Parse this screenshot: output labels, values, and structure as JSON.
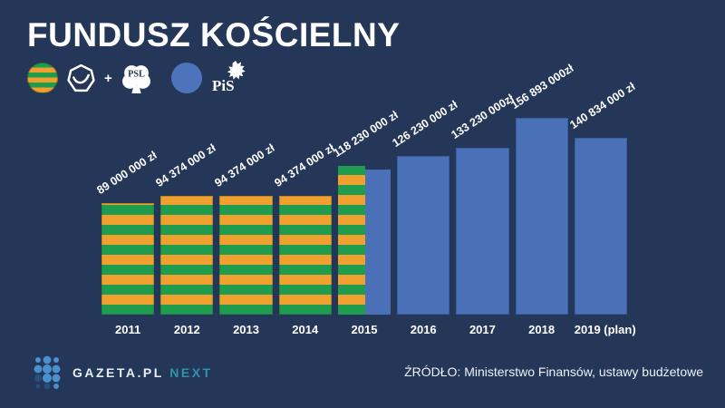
{
  "header": {
    "title": "FUNDUSZ KOŚCIELNY"
  },
  "legend": {
    "plus": "+",
    "psl_text": "PSL",
    "pis_text": "PiS"
  },
  "chart_data": {
    "type": "bar",
    "title": "FUNDUSZ KOŚCIELNY",
    "currency": "zł",
    "categories": [
      "2011",
      "2012",
      "2013",
      "2014",
      "2015",
      "2016",
      "2017",
      "2018",
      "2019 (plan)"
    ],
    "values": [
      89000000,
      94374000,
      94374000,
      94374000,
      118230000,
      126230000,
      133230000,
      156893000,
      140834000
    ],
    "value_labels": [
      "89 000 000 zł",
      "94 374 000 zł",
      "94 374 000 zł",
      "94 374 000 zł",
      "118 230 000 zł",
      "126 230 000 zł",
      "133 230 000zł",
      "156 893 000zł",
      "140 834 000 zł"
    ],
    "bar_styles": [
      "coalition",
      "coalition",
      "coalition",
      "coalition",
      "split",
      "pis",
      "pis",
      "pis",
      "pis"
    ],
    "colors": {
      "coalition_green": "#1f9c4d",
      "coalition_orange": "#efa02e",
      "pis_blue": "#4a70b8",
      "background": "#253758"
    },
    "ylim": [
      0,
      164000000
    ],
    "grid": false,
    "legend_position": "top-left",
    "legend": [
      {
        "name": "PO + PSL",
        "style": "striped green/orange"
      },
      {
        "name": "PiS",
        "style": "solid blue"
      }
    ]
  },
  "footer": {
    "brand": "GAZETA.PL",
    "brand_suffix": "NEXT",
    "source": "ŹRÓDŁO: Ministerstwo Finansów, ustawy budżetowe"
  }
}
